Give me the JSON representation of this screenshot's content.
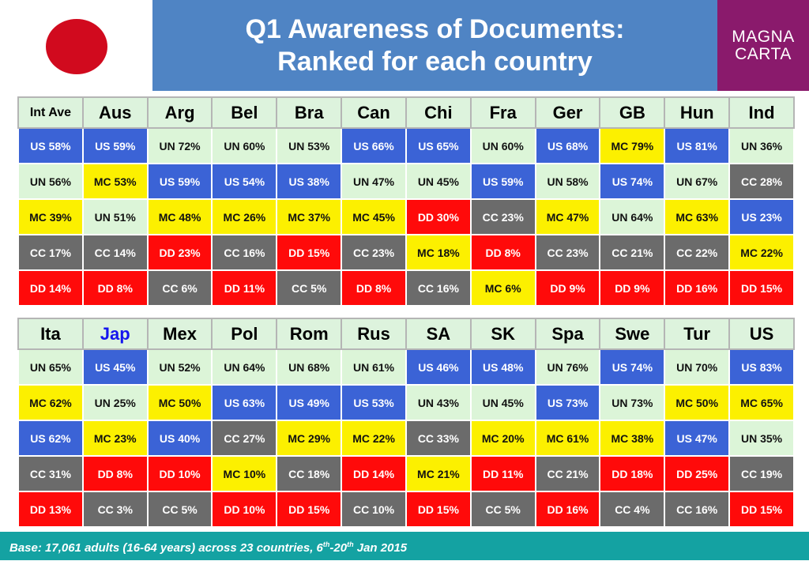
{
  "title": {
    "line1": "Q1 Awareness of Documents:",
    "line2": "Ranked for each country"
  },
  "logo": {
    "line1": "MAGNA",
    "line2": "CARTA"
  },
  "flag_colors": {
    "disc": "#d10a1e",
    "field": "#ffffff"
  },
  "table1": {
    "headers": [
      "Int Ave",
      "Aus",
      "Arg",
      "Bel",
      "Bra",
      "Can",
      "Chi",
      "Fra",
      "Ger",
      "GB",
      "Hun",
      "Ind"
    ],
    "rows": [
      [
        "US 58%",
        "US 59%",
        "UN 72%",
        "UN 60%",
        "UN 53%",
        "US 66%",
        "US 65%",
        "UN 60%",
        "US 68%",
        "MC 79%",
        "US 81%",
        "UN 36%"
      ],
      [
        "UN 56%",
        "MC 53%",
        "US 59%",
        "US 54%",
        "US 38%",
        "UN 47%",
        "UN 45%",
        "US 59%",
        "UN 58%",
        "US 74%",
        "UN 67%",
        "CC 28%"
      ],
      [
        "MC 39%",
        "UN 51%",
        "MC 48%",
        "MC 26%",
        "MC 37%",
        "MC 45%",
        "DD 30%",
        "CC 23%",
        "MC 47%",
        "UN 64%",
        "MC 63%",
        "US 23%"
      ],
      [
        "CC 17%",
        "CC 14%",
        "DD 23%",
        "CC 16%",
        "DD 15%",
        "CC 23%",
        "MC 18%",
        "DD 8%",
        "CC 23%",
        "CC 21%",
        "CC 22%",
        "MC 22%"
      ],
      [
        "DD 14%",
        "DD 8%",
        "CC 6%",
        "DD 11%",
        "CC 5%",
        "DD 8%",
        "CC 16%",
        "MC 6%",
        "DD 9%",
        "DD 9%",
        "DD 16%",
        "DD 15%"
      ]
    ]
  },
  "table2": {
    "headers": [
      "Ita",
      "Jap",
      "Mex",
      "Pol",
      "Rom",
      "Rus",
      "SA",
      "SK",
      "Spa",
      "Swe",
      "Tur",
      "US"
    ],
    "highlight": "Jap",
    "rows": [
      [
        "UN 65%",
        "US 45%",
        "UN 52%",
        "UN 64%",
        "UN 68%",
        "UN 61%",
        "US 46%",
        "US 48%",
        "UN 76%",
        "US 74%",
        "UN 70%",
        "US 83%"
      ],
      [
        "MC 62%",
        "UN 25%",
        "MC 50%",
        "US 63%",
        "US 49%",
        "US 53%",
        "UN 43%",
        "UN 45%",
        "US 73%",
        "UN 73%",
        "MC 50%",
        "MC 65%"
      ],
      [
        "US 62%",
        "MC 23%",
        "US 40%",
        "CC 27%",
        "MC 29%",
        "MC 22%",
        "CC 33%",
        "MC 20%",
        "MC 61%",
        "MC 38%",
        "US 47%",
        "UN 35%"
      ],
      [
        "CC 31%",
        "DD 8%",
        "DD 10%",
        "MC 10%",
        "CC 18%",
        "DD 14%",
        "MC 21%",
        "DD 11%",
        "CC 21%",
        "DD 18%",
        "DD 25%",
        "CC 19%"
      ],
      [
        "DD 13%",
        "CC 3%",
        "CC 5%",
        "DD 10%",
        "DD 15%",
        "CC 10%",
        "DD 15%",
        "CC 5%",
        "DD 16%",
        "CC 4%",
        "CC 16%",
        "DD 15%"
      ]
    ]
  },
  "category_colors": {
    "UN": "#dcf5d8",
    "US": "#3b63d6",
    "MC": "#fcf000",
    "CC": "#6b6b6b",
    "DD": "#ff0a0a"
  },
  "footer": {
    "base": "Base: 17,061 adults (16-64 years) across 23 countries, 6",
    "sup1": "th",
    "mid": "-20",
    "sup2": "th",
    "end": " Jan 2015"
  }
}
